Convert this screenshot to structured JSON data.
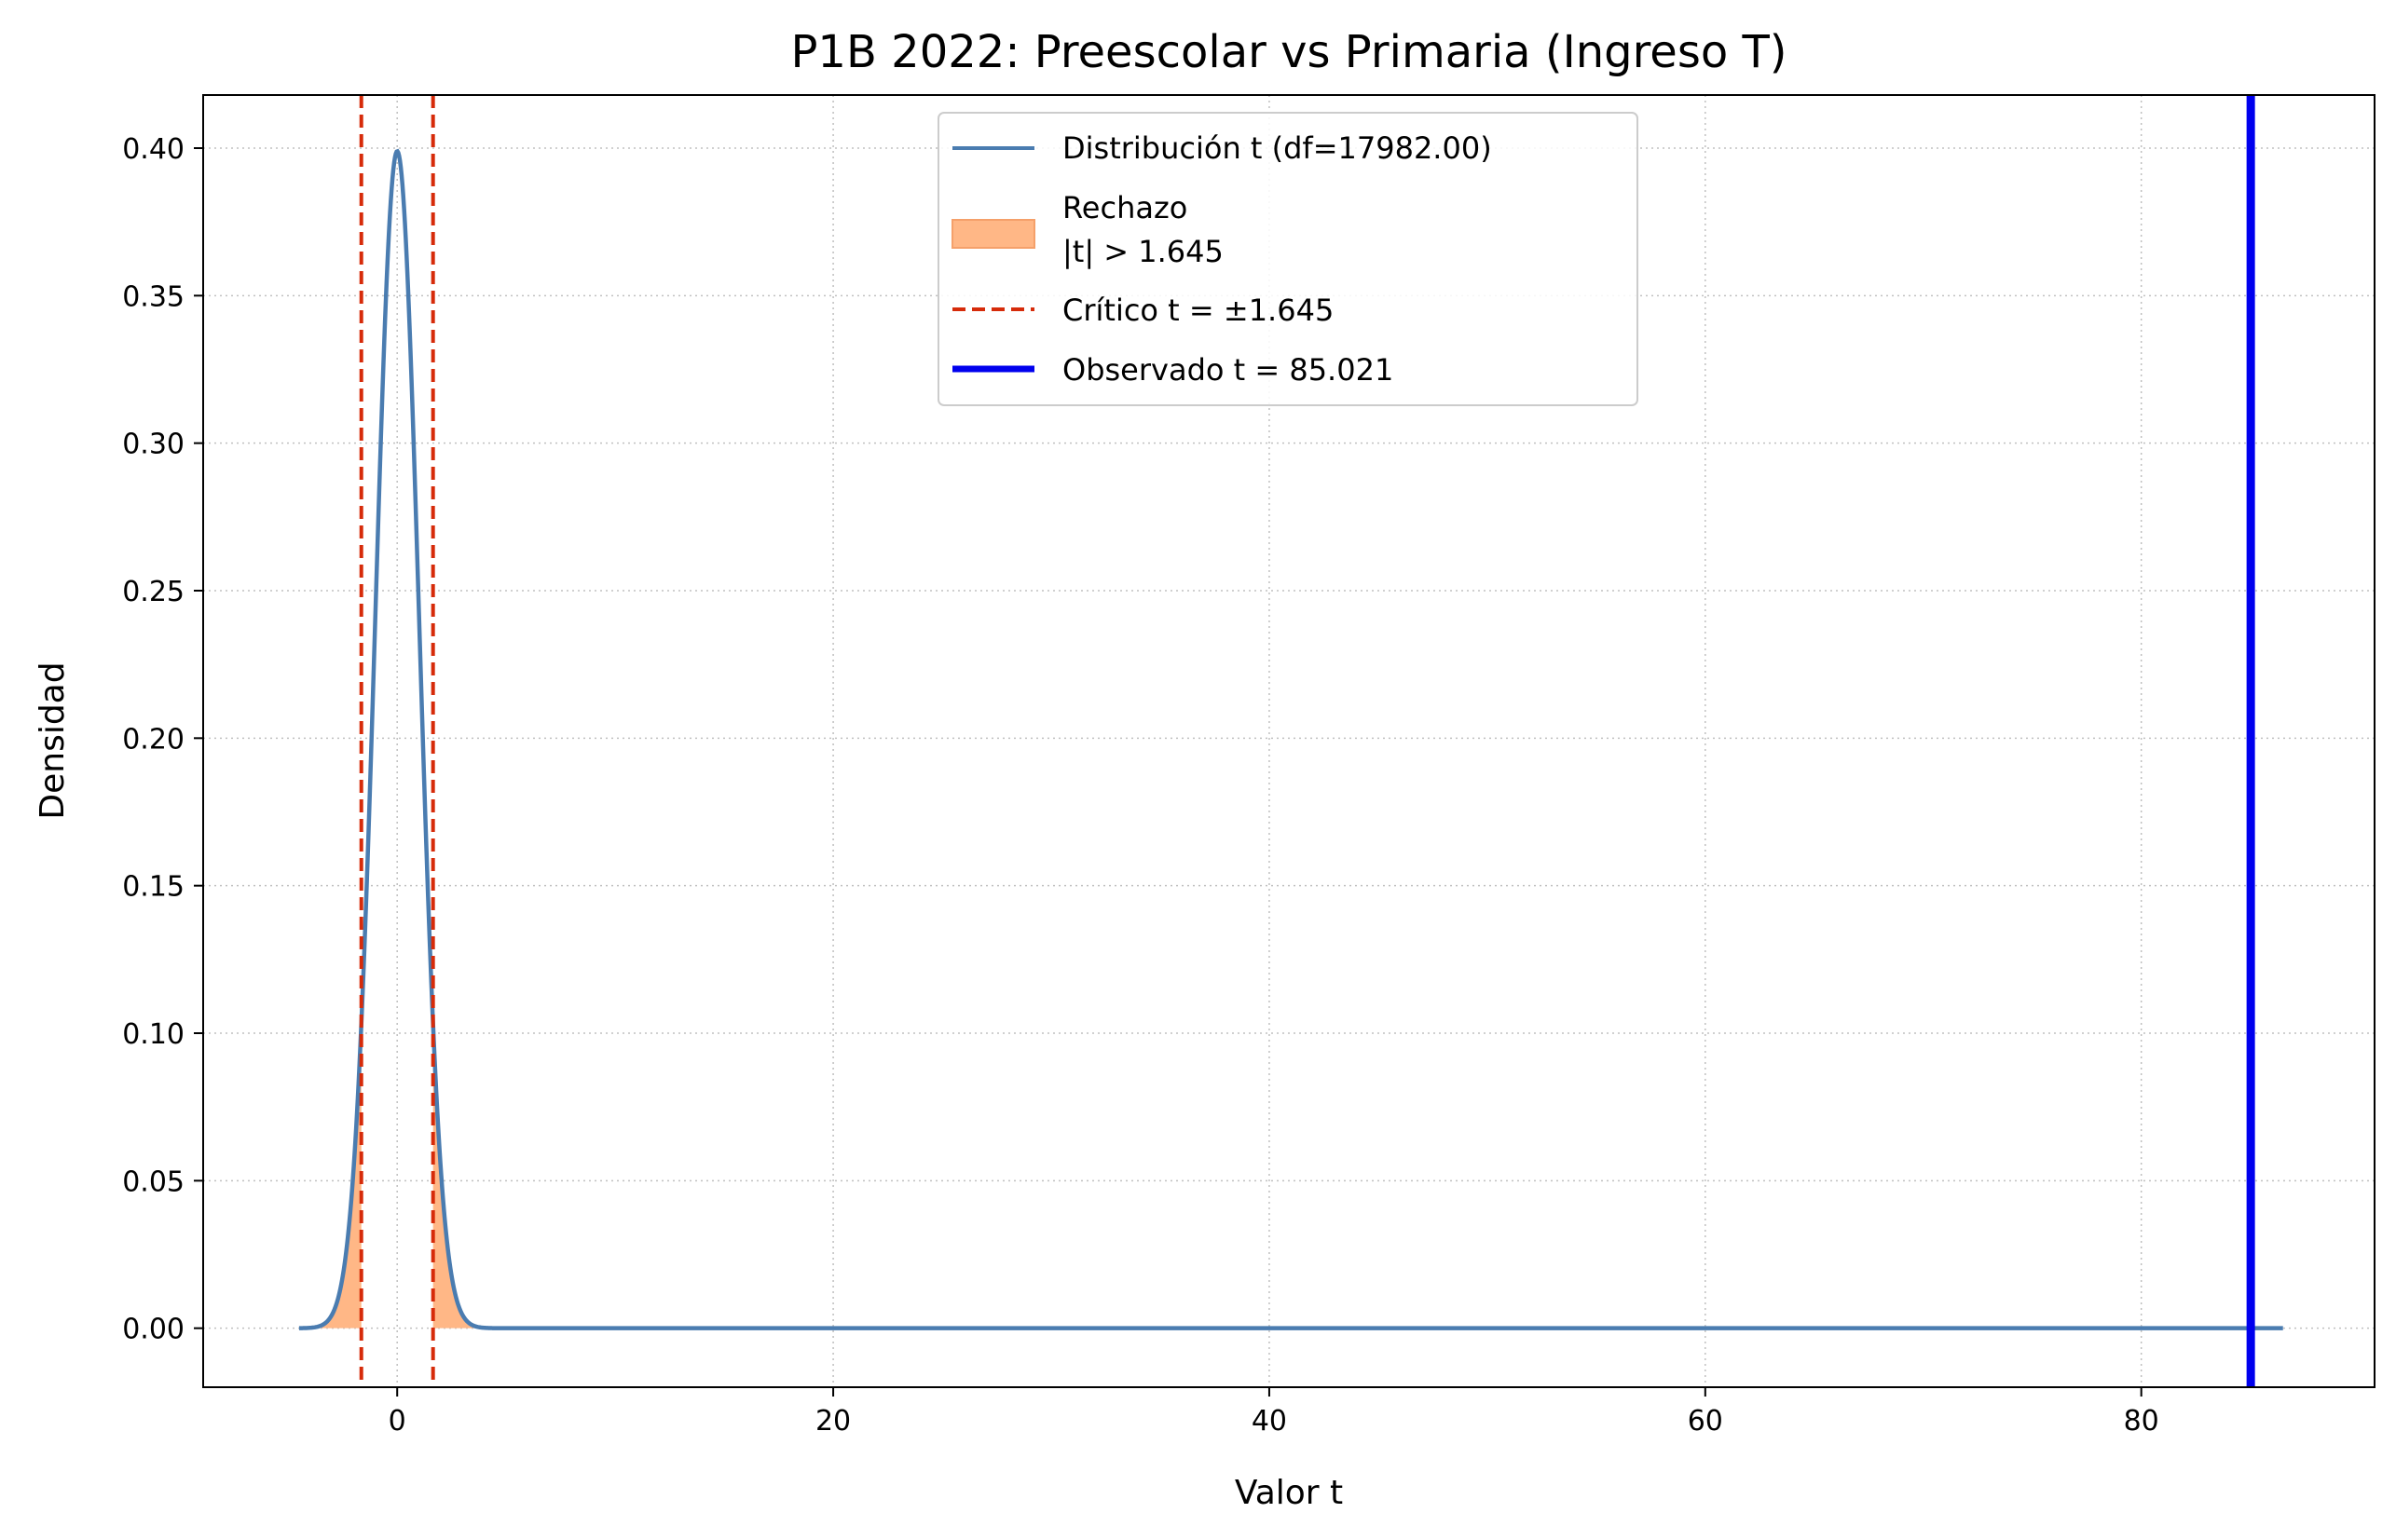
{
  "chart_data": {
    "type": "line",
    "title": "P1B 2022: Preescolar vs Primaria (Ingreso T)",
    "xlabel": "Valor t",
    "ylabel": "Densidad",
    "xlim": [
      -8.9,
      90.7
    ],
    "ylim": [
      -0.02,
      0.418
    ],
    "x_ticks": [
      0,
      20,
      40,
      60,
      80
    ],
    "y_ticks": [
      0.0,
      0.05,
      0.1,
      0.15,
      0.2,
      0.25,
      0.3,
      0.35,
      0.4
    ],
    "x_tick_labels": [
      "0",
      "20",
      "40",
      "60",
      "80"
    ],
    "y_tick_labels": [
      "0.00",
      "0.05",
      "0.10",
      "0.15",
      "0.20",
      "0.25",
      "0.30",
      "0.35",
      "0.40"
    ],
    "grid": true,
    "legend_position": "upper-center",
    "distribution": {
      "label": "Distribución t (df=17982.00)",
      "df": 17982.0,
      "x_range": [
        -4.5,
        86.5
      ],
      "color": "#4a7cb0"
    },
    "rejection": {
      "label_line1": "Rechazo",
      "label_line2": "|t| > 1.645",
      "threshold": 1.645,
      "color": "#ffb786"
    },
    "critical": {
      "label": "Crítico t = ±1.645",
      "values": [
        -1.645,
        1.645
      ],
      "color": "#d62b0a"
    },
    "observed": {
      "label": "Observado t = 85.021",
      "value": 85.021,
      "color": "#0000ee"
    }
  }
}
